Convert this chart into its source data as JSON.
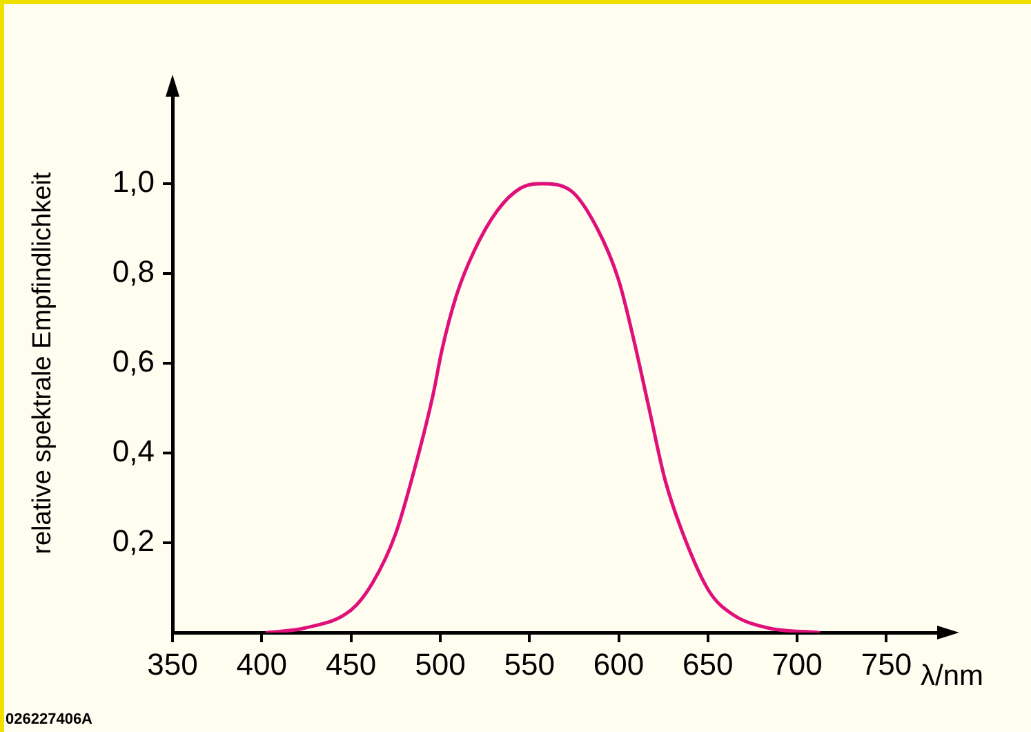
{
  "chart_data": {
    "type": "line",
    "xlabel": "λ/nm",
    "ylabel": "relative spektrale Empfindlichkeit",
    "annotations": [
      "026227406A"
    ],
    "xlim": [
      350,
      780
    ],
    "xticks": [
      350,
      400,
      450,
      500,
      550,
      600,
      650,
      700,
      750
    ],
    "ylim": [
      0,
      1.2
    ],
    "yticks": [
      {
        "value": 0.2,
        "label": "0,2"
      },
      {
        "value": 0.4,
        "label": "0,4"
      },
      {
        "value": 0.6,
        "label": "0,6"
      },
      {
        "value": 0.8,
        "label": "0,8"
      },
      {
        "value": 1.0,
        "label": "1,0"
      }
    ],
    "grid": false,
    "legend": false,
    "marker": "none",
    "line_style": "solid",
    "series": [
      {
        "color": "#e0107a",
        "x": [
          403,
          424,
          450,
          462,
          475,
          488,
          496,
          501,
          509,
          519,
          532,
          545,
          557,
          573,
          588,
          600,
          608,
          617,
          626,
          638,
          651,
          664,
          684,
          712
        ],
        "values": [
          0,
          0.01,
          0.05,
          0.11,
          0.22,
          0.4,
          0.53,
          0.63,
          0.75,
          0.85,
          0.94,
          0.99,
          1.0,
          0.985,
          0.9,
          0.785,
          0.66,
          0.5,
          0.34,
          0.2,
          0.09,
          0.04,
          0.01,
          0
        ]
      }
    ]
  }
}
